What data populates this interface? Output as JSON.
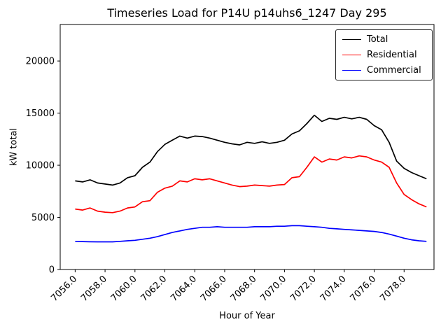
{
  "chart_data": {
    "type": "line",
    "title": "Timeseries Load for P14U p14uhs6_1247  Day 295",
    "xlabel": "Hour of Year",
    "ylabel": "kW total",
    "xlim": [
      7055.0,
      7080.0
    ],
    "ylim": [
      0,
      23500
    ],
    "grid": false,
    "legend_position": "upper right",
    "xticks": [
      7056,
      7058,
      7060,
      7062,
      7064,
      7066,
      7068,
      7070,
      7072,
      7074,
      7076,
      7078
    ],
    "xtick_labels": [
      "7056.0",
      "7058.0",
      "7060.0",
      "7062.0",
      "7064.0",
      "7066.0",
      "7068.0",
      "7070.0",
      "7072.0",
      "7074.0",
      "7076.0",
      "7078.0"
    ],
    "yticks": [
      0,
      5000,
      10000,
      15000,
      20000
    ],
    "ytick_labels": [
      "0",
      "5000",
      "10000",
      "15000",
      "20000"
    ],
    "x": [
      7056.0,
      7056.5,
      7057.0,
      7057.5,
      7058.0,
      7058.5,
      7059.0,
      7059.5,
      7060.0,
      7060.5,
      7061.0,
      7061.5,
      7062.0,
      7062.5,
      7063.0,
      7063.5,
      7064.0,
      7064.5,
      7065.0,
      7065.5,
      7066.0,
      7066.5,
      7067.0,
      7067.5,
      7068.0,
      7068.5,
      7069.0,
      7069.5,
      7070.0,
      7070.5,
      7071.0,
      7071.5,
      7072.0,
      7072.5,
      7073.0,
      7073.5,
      7074.0,
      7074.5,
      7075.0,
      7075.5,
      7076.0,
      7076.5,
      7077.0,
      7077.5,
      7078.0,
      7078.5,
      7079.0,
      7079.5
    ],
    "series": [
      {
        "name": "Total",
        "color": "#000000",
        "values": [
          8500,
          8400,
          8600,
          8300,
          8200,
          8100,
          8300,
          8800,
          9000,
          9800,
          10300,
          11300,
          12000,
          12400,
          12800,
          12600,
          12800,
          12750,
          12600,
          12400,
          12200,
          12050,
          11950,
          12200,
          12100,
          12250,
          12100,
          12200,
          12400,
          13000,
          13300,
          14000,
          14800,
          14200,
          14500,
          14400,
          14600,
          14450,
          14600,
          14400,
          13800,
          13400,
          12200,
          10400,
          9700,
          9300,
          9000,
          8700
        ]
      },
      {
        "name": "Residential",
        "color": "#ff0000",
        "values": [
          5800,
          5700,
          5900,
          5600,
          5500,
          5450,
          5600,
          5900,
          6000,
          6500,
          6600,
          7400,
          7800,
          8000,
          8500,
          8400,
          8700,
          8600,
          8700,
          8500,
          8300,
          8100,
          7950,
          8000,
          8100,
          8050,
          8000,
          8100,
          8150,
          8800,
          8900,
          9800,
          10800,
          10300,
          10600,
          10500,
          10800,
          10700,
          10900,
          10800,
          10500,
          10300,
          9800,
          8300,
          7200,
          6700,
          6300,
          6000
        ]
      },
      {
        "name": "Commercial",
        "color": "#0000ff",
        "values": [
          2700,
          2680,
          2660,
          2650,
          2650,
          2650,
          2700,
          2750,
          2800,
          2900,
          3000,
          3150,
          3350,
          3550,
          3700,
          3850,
          3950,
          4050,
          4050,
          4100,
          4050,
          4050,
          4050,
          4050,
          4100,
          4100,
          4100,
          4150,
          4150,
          4200,
          4200,
          4150,
          4100,
          4050,
          3950,
          3900,
          3850,
          3800,
          3750,
          3700,
          3650,
          3550,
          3400,
          3200,
          3000,
          2850,
          2750,
          2700
        ]
      }
    ]
  }
}
